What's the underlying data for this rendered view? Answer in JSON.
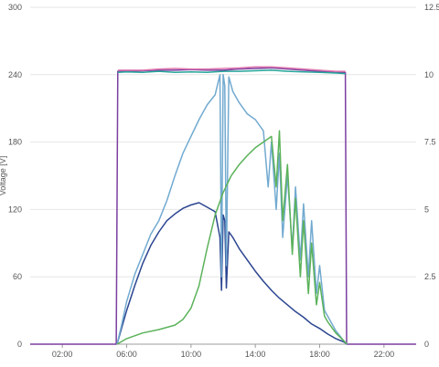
{
  "chart_data": {
    "type": "line",
    "ylabel_left": "Voltage [V]",
    "x_range_hours": [
      0,
      24
    ],
    "x_ticks": [
      {
        "h": 2,
        "label": "02:00"
      },
      {
        "h": 6,
        "label": "06:00"
      },
      {
        "h": 10,
        "label": "10:00"
      },
      {
        "h": 14,
        "label": "14:00"
      },
      {
        "h": 18,
        "label": "18:00"
      },
      {
        "h": 22,
        "label": "22:00"
      }
    ],
    "y_left": {
      "min": 0,
      "max": 300,
      "ticks": [
        "0",
        "60",
        "120",
        "180",
        "240",
        "300"
      ]
    },
    "y_right": {
      "min": 0,
      "max": 12.5,
      "ticks": [
        "0",
        "2.5",
        "5",
        "7.5",
        "10",
        "12.5"
      ]
    },
    "grid": true,
    "colors": {
      "grid": "#e6e6e6",
      "axis": "#9e9e9e",
      "tick_text": "#555555"
    },
    "series": [
      {
        "color": "#7b3fa0",
        "axis": "left",
        "points": [
          [
            0,
            0
          ],
          [
            5.35,
            0
          ],
          [
            5.45,
            243
          ],
          [
            6,
            243
          ],
          [
            7,
            243.5
          ],
          [
            8,
            244
          ],
          [
            9,
            244
          ],
          [
            10,
            244.5
          ],
          [
            11,
            244
          ],
          [
            12,
            244
          ],
          [
            13,
            245
          ],
          [
            14,
            245.5
          ],
          [
            15,
            246
          ],
          [
            16,
            245
          ],
          [
            17,
            244
          ],
          [
            18,
            243
          ],
          [
            19,
            242
          ],
          [
            19.6,
            242
          ],
          [
            19.68,
            0
          ],
          [
            24,
            0
          ]
        ]
      },
      {
        "color": "#e07bb0",
        "axis": "left",
        "points": [
          [
            5.45,
            244
          ],
          [
            6,
            244
          ],
          [
            7,
            244
          ],
          [
            8,
            245
          ],
          [
            9,
            245.5
          ],
          [
            10,
            245
          ],
          [
            11,
            245
          ],
          [
            12,
            245.5
          ],
          [
            13,
            246
          ],
          [
            14,
            247
          ],
          [
            15,
            247
          ],
          [
            16,
            246
          ],
          [
            17,
            245
          ],
          [
            18,
            244
          ],
          [
            19,
            243
          ],
          [
            19.6,
            243
          ]
        ]
      },
      {
        "color": "#26a69a",
        "axis": "left",
        "points": [
          [
            5.45,
            242
          ],
          [
            6,
            242.5
          ],
          [
            7,
            242
          ],
          [
            8,
            243
          ],
          [
            9,
            242
          ],
          [
            10,
            242.5
          ],
          [
            11,
            242
          ],
          [
            12,
            243
          ],
          [
            13,
            243
          ],
          [
            14,
            243.5
          ],
          [
            15,
            244
          ],
          [
            16,
            243
          ],
          [
            17,
            242.5
          ],
          [
            18,
            242
          ],
          [
            19,
            241.5
          ],
          [
            19.6,
            241
          ]
        ]
      },
      {
        "color": "#2b4590",
        "axis": "left",
        "points": [
          [
            5.4,
            0
          ],
          [
            5.7,
            15
          ],
          [
            6,
            30
          ],
          [
            6.5,
            52
          ],
          [
            7,
            72
          ],
          [
            7.5,
            88
          ],
          [
            8,
            100
          ],
          [
            8.5,
            110
          ],
          [
            9,
            116
          ],
          [
            9.5,
            121
          ],
          [
            10,
            124
          ],
          [
            10.5,
            126
          ],
          [
            11,
            122
          ],
          [
            11.5,
            118
          ],
          [
            11.8,
            95
          ],
          [
            11.9,
            48
          ],
          [
            12,
            115
          ],
          [
            12.1,
            110
          ],
          [
            12.2,
            50
          ],
          [
            12.35,
            100
          ],
          [
            12.6,
            95
          ],
          [
            13,
            85
          ],
          [
            13.5,
            75
          ],
          [
            14,
            65
          ],
          [
            14.5,
            56
          ],
          [
            15,
            48
          ],
          [
            15.5,
            41
          ],
          [
            16,
            35
          ],
          [
            16.5,
            29
          ],
          [
            17,
            24
          ],
          [
            17.5,
            18
          ],
          [
            18,
            14
          ],
          [
            18.5,
            9
          ],
          [
            19,
            5
          ],
          [
            19.5,
            2
          ],
          [
            19.7,
            0
          ]
        ]
      },
      {
        "color": "#72aad0",
        "axis": "left",
        "points": [
          [
            5.4,
            0
          ],
          [
            5.7,
            18
          ],
          [
            6,
            38
          ],
          [
            6.5,
            62
          ],
          [
            7,
            80
          ],
          [
            7.5,
            98
          ],
          [
            8,
            110
          ],
          [
            8.5,
            128
          ],
          [
            9,
            150
          ],
          [
            9.5,
            170
          ],
          [
            10,
            185
          ],
          [
            10.5,
            200
          ],
          [
            11,
            213
          ],
          [
            11.5,
            222
          ],
          [
            11.8,
            240
          ],
          [
            11.9,
            60
          ],
          [
            12,
            240
          ],
          [
            12.1,
            230
          ],
          [
            12.2,
            70
          ],
          [
            12.35,
            238
          ],
          [
            12.6,
            225
          ],
          [
            13,
            215
          ],
          [
            13.5,
            205
          ],
          [
            14,
            200
          ],
          [
            14.5,
            190
          ],
          [
            14.8,
            140
          ],
          [
            15,
            180
          ],
          [
            15.3,
            120
          ],
          [
            15.5,
            170
          ],
          [
            15.7,
            95
          ],
          [
            16,
            150
          ],
          [
            16.3,
            85
          ],
          [
            16.5,
            140
          ],
          [
            16.8,
            75
          ],
          [
            17,
            125
          ],
          [
            17.3,
            60
          ],
          [
            17.5,
            110
          ],
          [
            17.8,
            45
          ],
          [
            18,
            70
          ],
          [
            18.3,
            30
          ],
          [
            18.5,
            25
          ],
          [
            19,
            12
          ],
          [
            19.5,
            3
          ],
          [
            19.7,
            0
          ]
        ]
      },
      {
        "color": "#5bb25a",
        "axis": "left",
        "points": [
          [
            5.4,
            0
          ],
          [
            6,
            5
          ],
          [
            7,
            10
          ],
          [
            8,
            13
          ],
          [
            9,
            17
          ],
          [
            9.5,
            22
          ],
          [
            10,
            32
          ],
          [
            10.5,
            52
          ],
          [
            11,
            85
          ],
          [
            11.5,
            115
          ],
          [
            12,
            135
          ],
          [
            12.5,
            150
          ],
          [
            13,
            160
          ],
          [
            13.5,
            168
          ],
          [
            14,
            175
          ],
          [
            14.5,
            180
          ],
          [
            15,
            185
          ],
          [
            15.3,
            140
          ],
          [
            15.5,
            190
          ],
          [
            15.7,
            110
          ],
          [
            16,
            160
          ],
          [
            16.3,
            80
          ],
          [
            16.5,
            130
          ],
          [
            16.8,
            60
          ],
          [
            17,
            110
          ],
          [
            17.3,
            45
          ],
          [
            17.5,
            90
          ],
          [
            17.8,
            35
          ],
          [
            18,
            55
          ],
          [
            18.3,
            25
          ],
          [
            18.5,
            20
          ],
          [
            19,
            10
          ],
          [
            19.5,
            3
          ],
          [
            19.7,
            0
          ]
        ]
      }
    ]
  }
}
